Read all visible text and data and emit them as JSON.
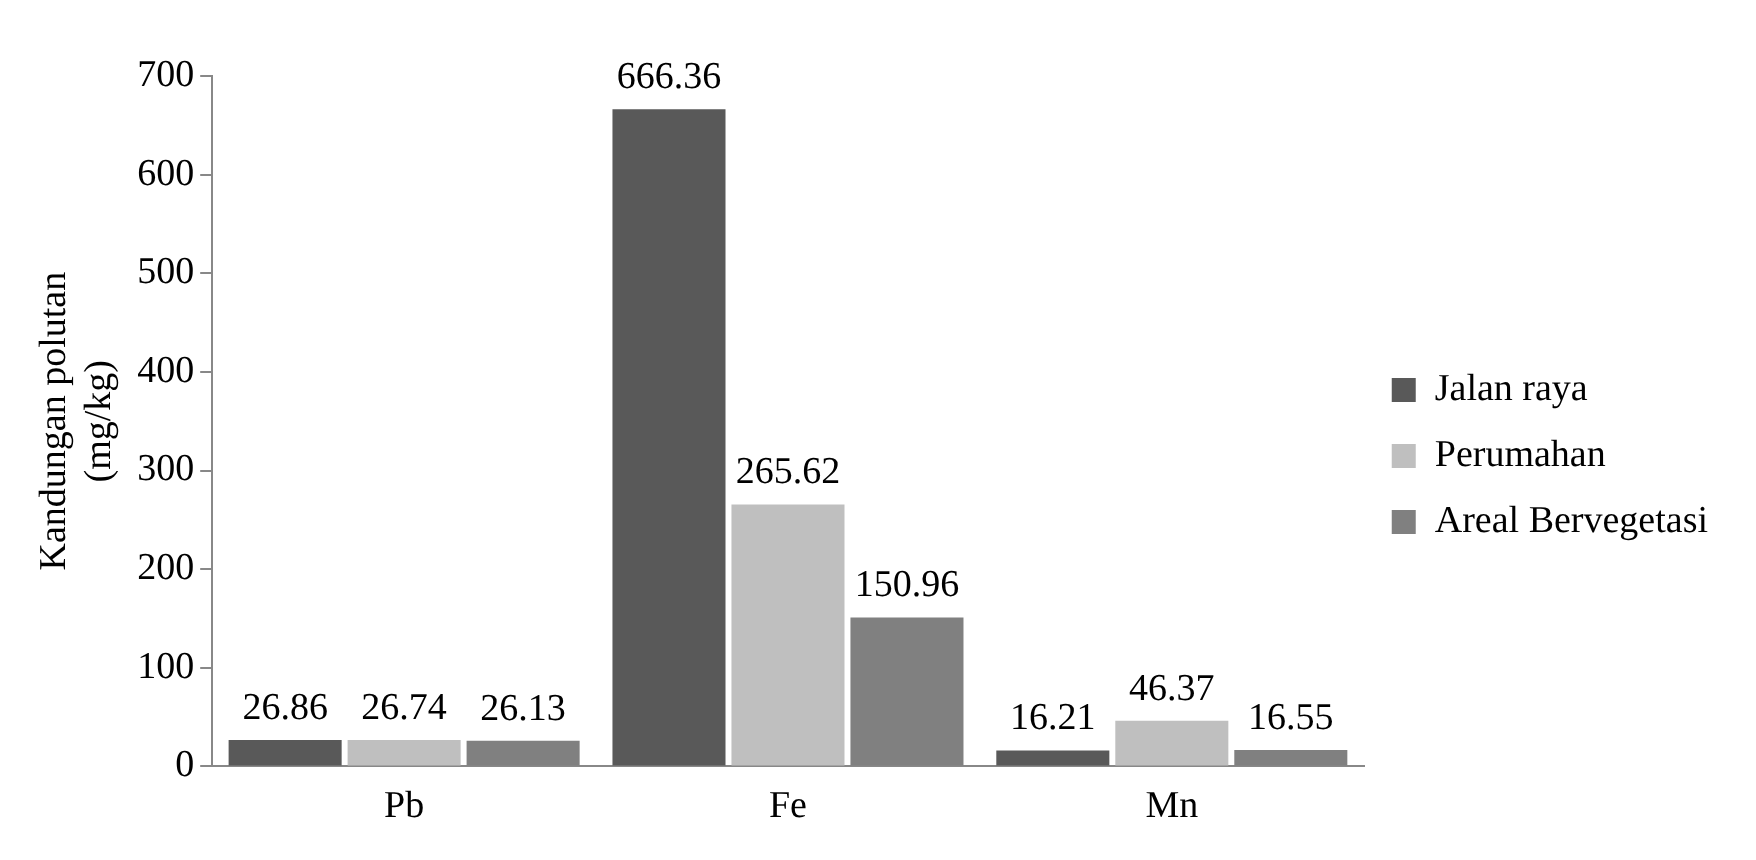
{
  "chart_data": {
    "type": "bar",
    "ylabel": "Kandungan polutan\n(mg/kg)",
    "categories": [
      "Pb",
      "Fe",
      "Mn"
    ],
    "series": [
      {
        "name": "Jalan raya",
        "color": "#595959",
        "values": [
          26.86,
          666.36,
          16.21
        ]
      },
      {
        "name": "Perumahan",
        "color": "#bfbfbf",
        "values": [
          26.74,
          265.62,
          46.37
        ]
      },
      {
        "name": "Areal Bervegetasi",
        "color": "#808080",
        "values": [
          26.13,
          150.96,
          16.55
        ]
      }
    ],
    "ylim": [
      0,
      700
    ],
    "yticks": [
      0,
      100,
      200,
      300,
      400,
      500,
      600,
      700
    ],
    "grid": false,
    "legend": "right",
    "data_labels": true
  }
}
